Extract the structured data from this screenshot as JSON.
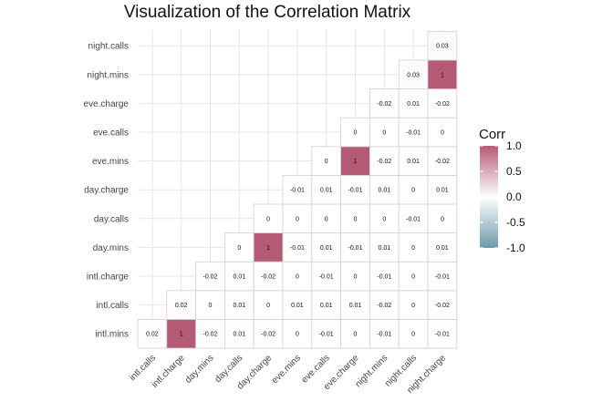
{
  "chart_data": {
    "type": "heatmap",
    "title": "Visualization of the Correlation Matrix",
    "x_categories": [
      "intl.calls",
      "intl.charge",
      "day.mins",
      "day.calls",
      "day.charge",
      "eve.mins",
      "eve.calls",
      "eve.charge",
      "night.mins",
      "night.calls",
      "night.charge"
    ],
    "y_categories": [
      "intl.mins",
      "intl.calls",
      "intl.charge",
      "day.mins",
      "day.calls",
      "day.charge",
      "eve.mins",
      "eve.calls",
      "eve.charge",
      "night.mins",
      "night.calls"
    ],
    "rows": [
      {
        "y": "intl.mins",
        "values": [
          "0.02",
          "1",
          "-0.02",
          "0.01",
          "-0.02",
          "0",
          "-0.01",
          "0",
          "-0.01",
          "0",
          "-0.01"
        ]
      },
      {
        "y": "intl.calls",
        "values": [
          null,
          "0.02",
          "0",
          "0.01",
          "0",
          "0.01",
          "0.01",
          "0.01",
          "-0.02",
          "0",
          "-0.02"
        ]
      },
      {
        "y": "intl.charge",
        "values": [
          null,
          null,
          "-0.02",
          "0.01",
          "-0.02",
          "0",
          "-0.01",
          "0",
          "-0.01",
          "0",
          "-0.01"
        ]
      },
      {
        "y": "day.mins",
        "values": [
          null,
          null,
          null,
          "0",
          "1",
          "-0.01",
          "0.01",
          "-0.01",
          "0.01",
          "0",
          "0.01"
        ]
      },
      {
        "y": "day.calls",
        "values": [
          null,
          null,
          null,
          null,
          "0",
          "0",
          "0",
          "0",
          "0",
          "-0.01",
          "0"
        ]
      },
      {
        "y": "day.charge",
        "values": [
          null,
          null,
          null,
          null,
          null,
          "-0.01",
          "0.01",
          "-0.01",
          "0.01",
          "0",
          "0.01"
        ]
      },
      {
        "y": "eve.mins",
        "values": [
          null,
          null,
          null,
          null,
          null,
          null,
          "0",
          "1",
          "-0.02",
          "0.01",
          "-0.02"
        ]
      },
      {
        "y": "eve.calls",
        "values": [
          null,
          null,
          null,
          null,
          null,
          null,
          null,
          "0",
          "0",
          "-0.01",
          "0"
        ]
      },
      {
        "y": "eve.charge",
        "values": [
          null,
          null,
          null,
          null,
          null,
          null,
          null,
          null,
          "-0.02",
          "0.01",
          "-0.02"
        ]
      },
      {
        "y": "night.mins",
        "values": [
          null,
          null,
          null,
          null,
          null,
          null,
          null,
          null,
          null,
          "0.03",
          "1"
        ]
      },
      {
        "y": "night.calls",
        "values": [
          null,
          null,
          null,
          null,
          null,
          null,
          null,
          null,
          null,
          null,
          "0.03"
        ]
      }
    ],
    "legend": {
      "title": "Corr",
      "ticks": [
        "1.0",
        "0.5",
        "0.0",
        "-0.5",
        "-1.0"
      ],
      "range": [
        -1,
        1
      ],
      "colors": {
        "low": "#6A9BAA",
        "mid": "#FFFFFF",
        "high": "#B55A75"
      }
    },
    "grid": true
  }
}
